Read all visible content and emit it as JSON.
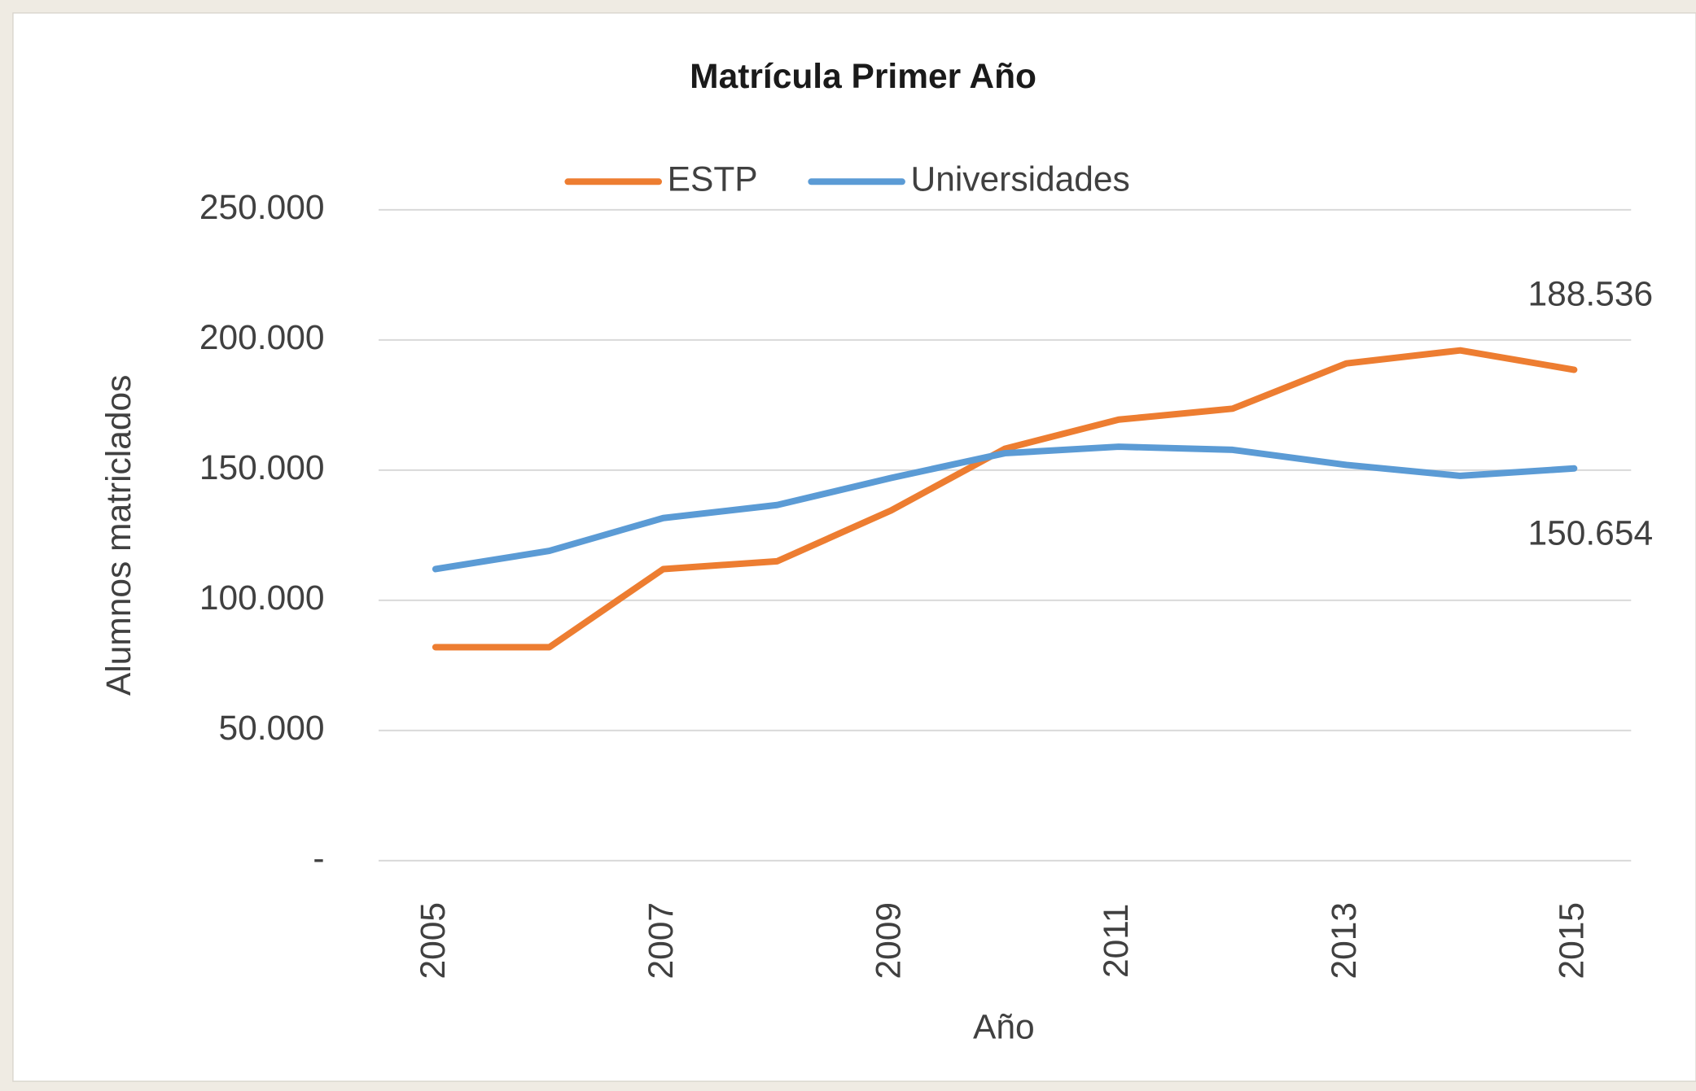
{
  "chart_data": {
    "type": "line",
    "title": "Matrícula Primer Año",
    "x_label": "Año",
    "y_label": "Alumnos matriclados",
    "categories": [
      "2005",
      null,
      "2007",
      null,
      "2009",
      null,
      "2011",
      null,
      "2013",
      null,
      "2015"
    ],
    "series": [
      {
        "name": "ESTP",
        "color": "#ed7d31",
        "values": [
          82000,
          82000,
          112000,
          115000,
          134500,
          158200,
          169400,
          173600,
          191000,
          196000,
          188536
        ],
        "value_labels": [
          null,
          null,
          null,
          null,
          null,
          null,
          null,
          null,
          null,
          null,
          "188.536"
        ]
      },
      {
        "name": "Universidades",
        "color": "#5b9bd5",
        "values": [
          112000,
          119000,
          131600,
          136600,
          147000,
          156500,
          159000,
          157800,
          152000,
          147800,
          150654
        ],
        "value_labels": [
          null,
          null,
          null,
          null,
          null,
          null,
          null,
          null,
          null,
          null,
          "150.654"
        ]
      }
    ],
    "ylim": [
      0,
      250000
    ],
    "yticks": [
      {
        "value": 0,
        "label": "-"
      },
      {
        "value": 50000,
        "label": "50.000"
      },
      {
        "value": 100000,
        "label": "100.000"
      },
      {
        "value": 150000,
        "label": "150.000"
      },
      {
        "value": 200000,
        "label": "200.000"
      },
      {
        "value": 250000,
        "label": "250.000"
      }
    ],
    "grid": true,
    "legend": "top"
  }
}
